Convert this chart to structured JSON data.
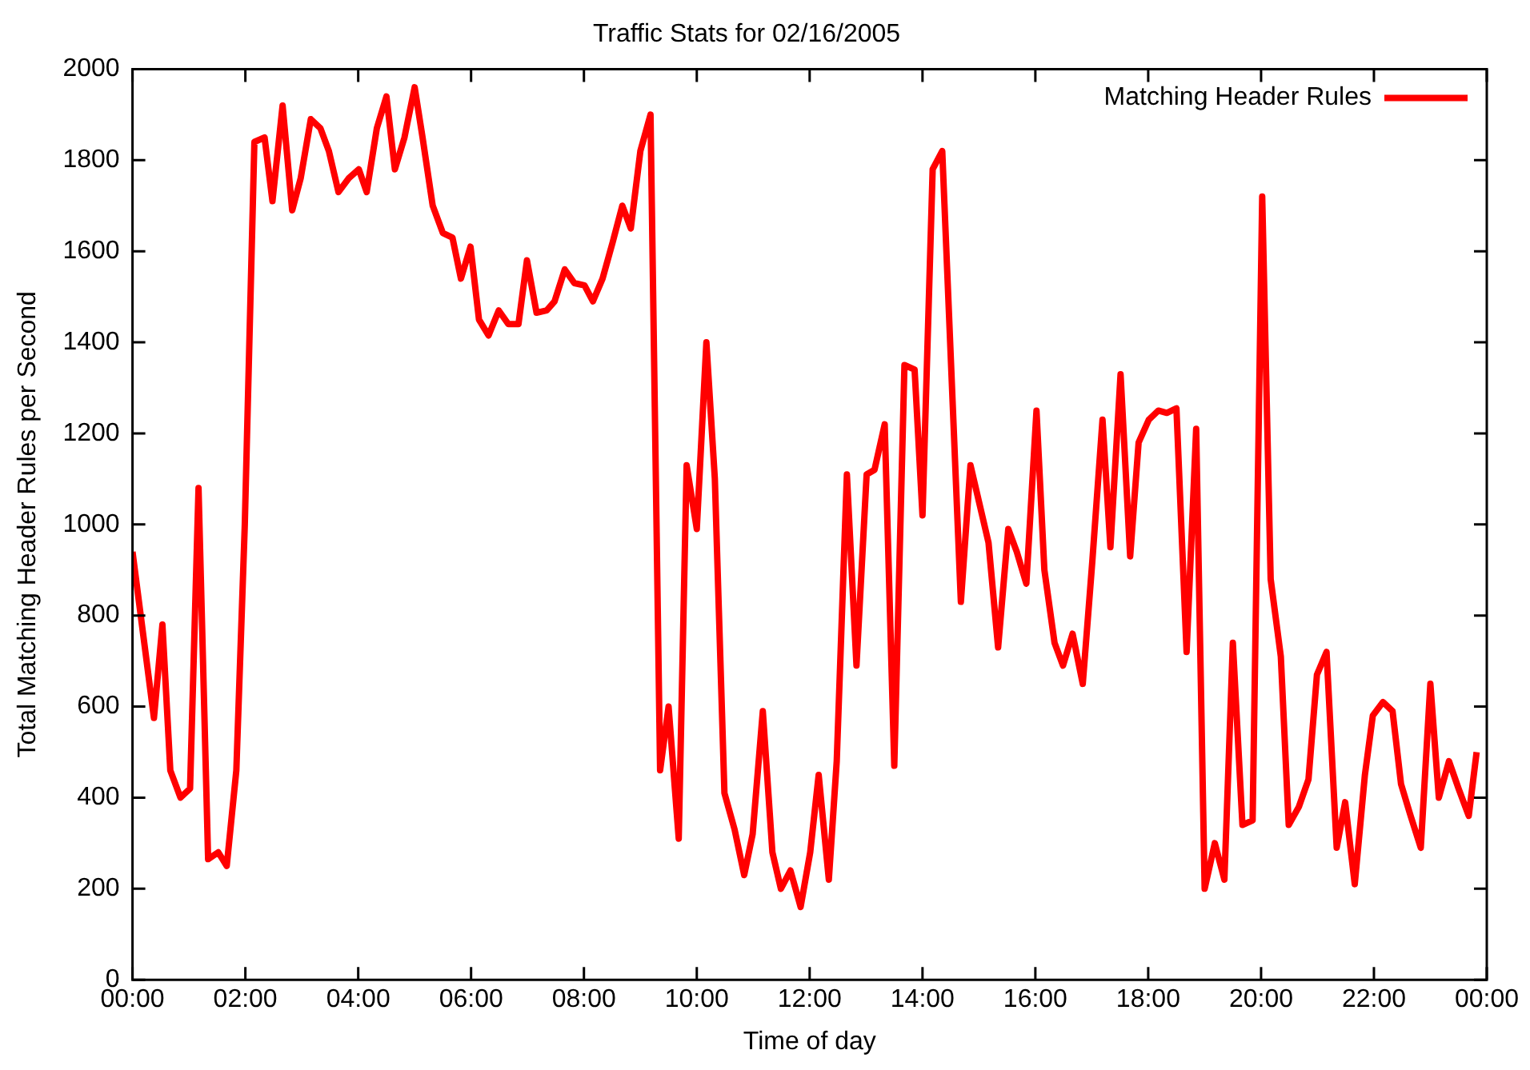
{
  "chart_data": {
    "type": "line",
    "title": "Traffic Stats for 02/16/2005",
    "xlabel": "Time of day",
    "ylabel": "Total Matching Header Rules per Second",
    "x": [
      0,
      0.38,
      0.53,
      0.67,
      0.85,
      1.02,
      1.17,
      1.34,
      1.52,
      1.67,
      1.84,
      1.99,
      2.16,
      2.34,
      2.48,
      2.66,
      2.83,
      2.98,
      3.16,
      3.33,
      3.48,
      3.65,
      3.83,
      4.01,
      4.15,
      4.33,
      4.5,
      4.65,
      4.82,
      5.0,
      5.14,
      5.32,
      5.5,
      5.67,
      5.82,
      5.99,
      6.14,
      6.31,
      6.49,
      6.66,
      6.84,
      6.99,
      7.16,
      7.34,
      7.48,
      7.66,
      7.83,
      8.01,
      8.16,
      8.33,
      8.51,
      8.68,
      8.83,
      9.0,
      9.18,
      9.35,
      9.5,
      9.68,
      9.82,
      10.0,
      10.17,
      10.32,
      10.49,
      10.67,
      10.84,
      10.99,
      11.17,
      11.34,
      11.49,
      11.66,
      11.84,
      12.01,
      12.16,
      12.34,
      12.48,
      12.66,
      12.83,
      13.01,
      13.15,
      13.33,
      13.5,
      13.68,
      13.86,
      14.0,
      14.18,
      14.35,
      14.68,
      14.85,
      15.17,
      15.34,
      15.52,
      15.67,
      15.84,
      16.02,
      16.16,
      16.34,
      16.49,
      16.66,
      16.84,
      17.01,
      17.19,
      17.33,
      17.51,
      17.68,
      17.83,
      18.01,
      18.18,
      18.33,
      18.5,
      18.68,
      18.85,
      19.0,
      19.18,
      19.35,
      19.5,
      19.67,
      19.85,
      20.02,
      20.17,
      20.35,
      20.49,
      20.67,
      20.84,
      20.99,
      21.16,
      21.34,
      21.49,
      21.66,
      21.84,
      21.98,
      22.16,
      22.33,
      22.48,
      22.65,
      22.83,
      23.0,
      23.15,
      23.33,
      23.5,
      23.68,
      23.82
    ],
    "series": [
      {
        "name": "Matching Header Rules",
        "color": "#ff0000",
        "values": [
          940,
          575,
          780,
          460,
          400,
          420,
          1080,
          265,
          280,
          250,
          460,
          1000,
          1840,
          1850,
          1710,
          1920,
          1690,
          1760,
          1890,
          1870,
          1820,
          1730,
          1760,
          1780,
          1730,
          1870,
          1940,
          1780,
          1850,
          1960,
          1850,
          1700,
          1640,
          1630,
          1540,
          1610,
          1450,
          1415,
          1470,
          1440,
          1440,
          1580,
          1465,
          1470,
          1490,
          1560,
          1530,
          1525,
          1490,
          1540,
          1620,
          1700,
          1650,
          1820,
          1900,
          460,
          600,
          310,
          1130,
          990,
          1400,
          1100,
          410,
          330,
          230,
          320,
          590,
          280,
          200,
          240,
          160,
          280,
          450,
          220,
          480,
          1110,
          690,
          1110,
          1120,
          1220,
          470,
          1350,
          1340,
          1020,
          1780,
          1820,
          830,
          1130,
          960,
          730,
          990,
          940,
          870,
          1250,
          900,
          740,
          690,
          760,
          650,
          920,
          1230,
          950,
          1330,
          930,
          1180,
          1230,
          1250,
          1245,
          1255,
          720,
          1210,
          200,
          300,
          220,
          740,
          340,
          350,
          1720,
          880,
          710,
          340,
          380,
          440,
          670,
          720,
          290,
          390,
          210,
          450,
          580,
          610,
          590,
          430,
          360,
          290,
          650,
          400,
          480,
          420,
          360,
          500
        ]
      }
    ],
    "xlim": [
      0,
      24
    ],
    "xticks": [
      {
        "value": 0,
        "label": "00:00"
      },
      {
        "value": 2,
        "label": "02:00"
      },
      {
        "value": 4,
        "label": "04:00"
      },
      {
        "value": 6,
        "label": "06:00"
      },
      {
        "value": 8,
        "label": "08:00"
      },
      {
        "value": 10,
        "label": "10:00"
      },
      {
        "value": 12,
        "label": "12:00"
      },
      {
        "value": 14,
        "label": "14:00"
      },
      {
        "value": 16,
        "label": "16:00"
      },
      {
        "value": 18,
        "label": "18:00"
      },
      {
        "value": 20,
        "label": "20:00"
      },
      {
        "value": 22,
        "label": "22:00"
      },
      {
        "value": 24,
        "label": "00:00"
      }
    ],
    "ylim": [
      0,
      2000
    ],
    "yticks": [
      0,
      200,
      400,
      600,
      800,
      1000,
      1200,
      1400,
      1600,
      1800,
      2000
    ],
    "grid": false,
    "legend": "top right",
    "marker": "none",
    "line_style": "solid"
  }
}
